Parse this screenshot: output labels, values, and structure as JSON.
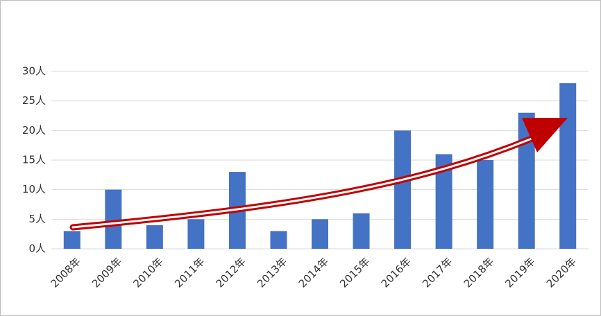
{
  "chart_data": {
    "type": "bar",
    "categories": [
      "2008年",
      "2009年",
      "2010年",
      "2011年",
      "2012年",
      "2013年",
      "2014年",
      "2015年",
      "2016年",
      "2017年",
      "2018年",
      "2019年",
      "2020年"
    ],
    "values": [
      3,
      10,
      4,
      5,
      13,
      3,
      5,
      6,
      20,
      16,
      15,
      23,
      28
    ],
    "color": "#4472c4",
    "ylim": [
      0,
      30
    ],
    "yticks": [
      {
        "value": 0,
        "label": "0人"
      },
      {
        "value": 5,
        "label": "5人"
      },
      {
        "value": 10,
        "label": "10人"
      },
      {
        "value": 15,
        "label": "15人"
      },
      {
        "value": 20,
        "label": "20人"
      },
      {
        "value": 25,
        "label": "25人"
      },
      {
        "value": 30,
        "label": "30人"
      }
    ],
    "grid": true
  }
}
